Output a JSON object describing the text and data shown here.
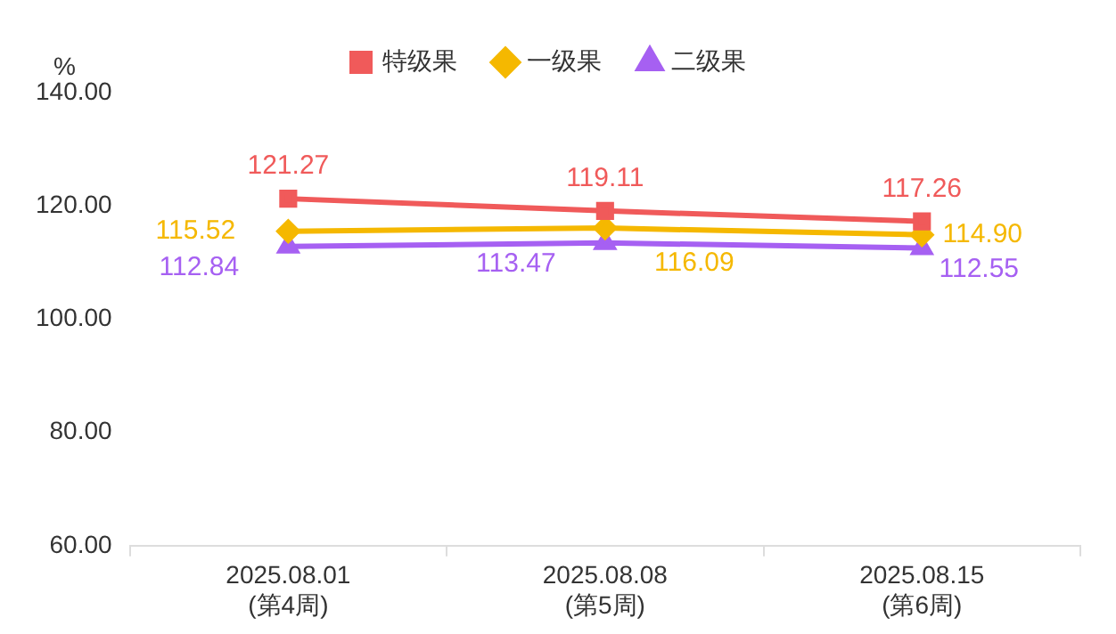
{
  "chart_data": {
    "type": "line",
    "ylabel": "%",
    "categories": [
      "2025.08.01\n(第4周)",
      "2025.08.08\n(第5周)",
      "2025.08.15\n(第6周)"
    ],
    "series": [
      {
        "name": "特级果",
        "color": "#f05a5a",
        "marker": "square",
        "values": [
          121.27,
          119.11,
          117.26
        ],
        "value_labels": [
          "121.27",
          "119.11",
          "117.26"
        ]
      },
      {
        "name": "一级果",
        "color": "#f5b800",
        "marker": "diamond",
        "values": [
          115.52,
          116.09,
          114.9
        ],
        "value_labels": [
          "115.52",
          "116.09",
          "114.90"
        ]
      },
      {
        "name": "二级果",
        "color": "#a660f2",
        "marker": "triangle",
        "values": [
          112.84,
          113.47,
          112.55
        ],
        "value_labels": [
          "112.84",
          "113.47",
          "112.55"
        ]
      }
    ],
    "ylim": [
      60,
      140
    ],
    "yticks": [
      {
        "value": 60,
        "label": "60.00"
      },
      {
        "value": 80,
        "label": "80.00"
      },
      {
        "value": 100,
        "label": "100.00"
      },
      {
        "value": 120,
        "label": "120.00"
      },
      {
        "value": 140,
        "label": "140.00"
      }
    ],
    "grid": false,
    "legend": "top"
  }
}
